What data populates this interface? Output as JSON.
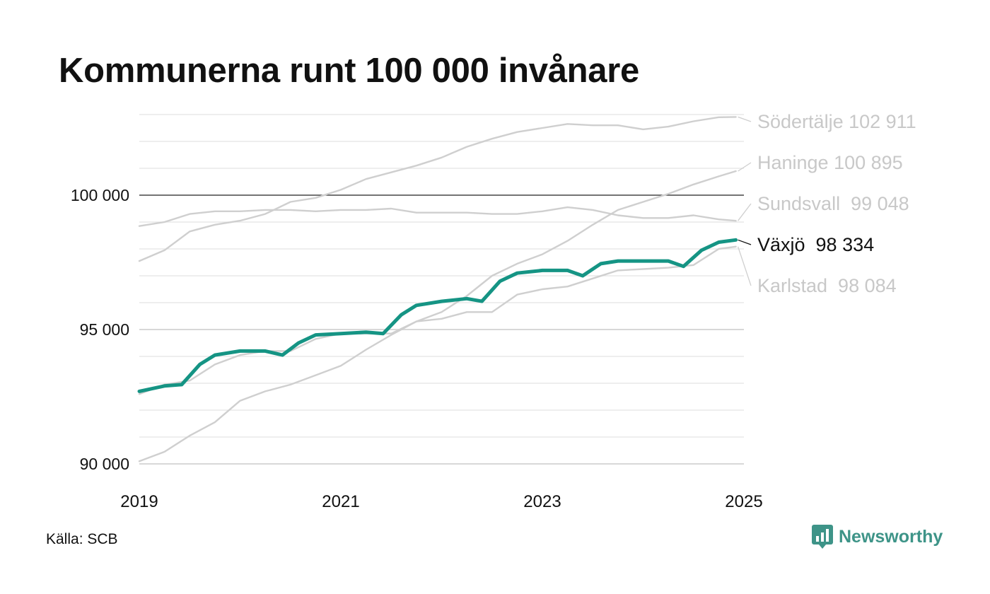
{
  "title": "Kommunerna runt 100 000 invånare",
  "source": "Källa: SCB",
  "brand": {
    "name": "Newsworthy",
    "icon": "newsworthy-logo-icon",
    "color": "#3e9488"
  },
  "colors": {
    "highlight": "#159484",
    "muted": "#cfcfcf",
    "label_muted": "#c8c8c8",
    "grid": "#e3e3e3",
    "reference": "#222222"
  },
  "chart_data": {
    "type": "line",
    "title": "Kommunerna runt 100 000 invånare",
    "x_ticks": [
      "2019",
      "2021",
      "2023",
      "2025"
    ],
    "x_tick_values": [
      2019,
      2021,
      2023,
      2025
    ],
    "y_ticks": [
      "90 000",
      "95 000",
      "100 000"
    ],
    "y_tick_values": [
      90000,
      95000,
      100000
    ],
    "ylim": [
      90000,
      103000
    ],
    "xlim": [
      2019,
      2025
    ],
    "grid": true,
    "reference_line": 100000,
    "series": [
      {
        "name": "Södertälje",
        "label": "Södertälje 102 911",
        "highlight": false,
        "points": [
          [
            2019.0,
            97550
          ],
          [
            2019.25,
            97950
          ],
          [
            2019.5,
            98650
          ],
          [
            2019.75,
            98900
          ],
          [
            2020.0,
            99050
          ],
          [
            2020.25,
            99300
          ],
          [
            2020.5,
            99750
          ],
          [
            2020.75,
            99900
          ],
          [
            2021.0,
            100200
          ],
          [
            2021.25,
            100600
          ],
          [
            2021.5,
            100850
          ],
          [
            2021.75,
            101100
          ],
          [
            2022.0,
            101400
          ],
          [
            2022.25,
            101800
          ],
          [
            2022.5,
            102100
          ],
          [
            2022.75,
            102350
          ],
          [
            2023.0,
            102500
          ],
          [
            2023.25,
            102650
          ],
          [
            2023.5,
            102600
          ],
          [
            2023.75,
            102600
          ],
          [
            2024.0,
            102450
          ],
          [
            2024.25,
            102550
          ],
          [
            2024.5,
            102750
          ],
          [
            2024.75,
            102900
          ],
          [
            2024.92,
            102911
          ]
        ]
      },
      {
        "name": "Haninge",
        "label": "Haninge 100 895",
        "highlight": false,
        "points": [
          [
            2019.0,
            90100
          ],
          [
            2019.25,
            90450
          ],
          [
            2019.5,
            91050
          ],
          [
            2019.75,
            91550
          ],
          [
            2020.0,
            92350
          ],
          [
            2020.25,
            92700
          ],
          [
            2020.5,
            92950
          ],
          [
            2020.75,
            93300
          ],
          [
            2021.0,
            93650
          ],
          [
            2021.25,
            94250
          ],
          [
            2021.5,
            94800
          ],
          [
            2021.75,
            95300
          ],
          [
            2022.0,
            95650
          ],
          [
            2022.25,
            96250
          ],
          [
            2022.5,
            97000
          ],
          [
            2022.75,
            97450
          ],
          [
            2023.0,
            97800
          ],
          [
            2023.25,
            98300
          ],
          [
            2023.5,
            98900
          ],
          [
            2023.75,
            99450
          ],
          [
            2024.0,
            99750
          ],
          [
            2024.25,
            100050
          ],
          [
            2024.5,
            100400
          ],
          [
            2024.75,
            100700
          ],
          [
            2024.92,
            100895
          ]
        ]
      },
      {
        "name": "Sundsvall",
        "label": "Sundsvall  99 048",
        "highlight": false,
        "points": [
          [
            2019.0,
            98850
          ],
          [
            2019.25,
            99000
          ],
          [
            2019.5,
            99300
          ],
          [
            2019.75,
            99400
          ],
          [
            2020.0,
            99400
          ],
          [
            2020.25,
            99450
          ],
          [
            2020.5,
            99450
          ],
          [
            2020.75,
            99400
          ],
          [
            2021.0,
            99450
          ],
          [
            2021.25,
            99450
          ],
          [
            2021.5,
            99500
          ],
          [
            2021.75,
            99350
          ],
          [
            2022.0,
            99350
          ],
          [
            2022.25,
            99350
          ],
          [
            2022.5,
            99300
          ],
          [
            2022.75,
            99300
          ],
          [
            2023.0,
            99400
          ],
          [
            2023.25,
            99550
          ],
          [
            2023.5,
            99450
          ],
          [
            2023.75,
            99250
          ],
          [
            2024.0,
            99150
          ],
          [
            2024.25,
            99150
          ],
          [
            2024.5,
            99250
          ],
          [
            2024.75,
            99100
          ],
          [
            2024.92,
            99048
          ]
        ]
      },
      {
        "name": "Karlstad",
        "label": "Karlstad  98 084",
        "highlight": false,
        "points": [
          [
            2019.0,
            92600
          ],
          [
            2019.25,
            92950
          ],
          [
            2019.5,
            93100
          ],
          [
            2019.75,
            93700
          ],
          [
            2020.0,
            94050
          ],
          [
            2020.25,
            94200
          ],
          [
            2020.5,
            94200
          ],
          [
            2020.75,
            94650
          ],
          [
            2021.0,
            94850
          ],
          [
            2021.25,
            94850
          ],
          [
            2021.5,
            94850
          ],
          [
            2021.75,
            95300
          ],
          [
            2022.0,
            95400
          ],
          [
            2022.25,
            95650
          ],
          [
            2022.5,
            95650
          ],
          [
            2022.75,
            96300
          ],
          [
            2023.0,
            96500
          ],
          [
            2023.25,
            96600
          ],
          [
            2023.5,
            96900
          ],
          [
            2023.75,
            97200
          ],
          [
            2024.0,
            97250
          ],
          [
            2024.25,
            97300
          ],
          [
            2024.5,
            97400
          ],
          [
            2024.75,
            98000
          ],
          [
            2024.92,
            98084
          ]
        ]
      },
      {
        "name": "Växjö",
        "label": "Växjö  98 334",
        "highlight": true,
        "points": [
          [
            2019.0,
            92700
          ],
          [
            2019.25,
            92900
          ],
          [
            2019.42,
            92950
          ],
          [
            2019.6,
            93700
          ],
          [
            2019.75,
            94050
          ],
          [
            2020.0,
            94200
          ],
          [
            2020.25,
            94200
          ],
          [
            2020.42,
            94050
          ],
          [
            2020.58,
            94500
          ],
          [
            2020.75,
            94800
          ],
          [
            2021.0,
            94850
          ],
          [
            2021.25,
            94900
          ],
          [
            2021.42,
            94850
          ],
          [
            2021.6,
            95550
          ],
          [
            2021.75,
            95900
          ],
          [
            2022.0,
            96050
          ],
          [
            2022.25,
            96150
          ],
          [
            2022.4,
            96050
          ],
          [
            2022.58,
            96800
          ],
          [
            2022.75,
            97100
          ],
          [
            2023.0,
            97200
          ],
          [
            2023.25,
            97200
          ],
          [
            2023.4,
            97000
          ],
          [
            2023.58,
            97450
          ],
          [
            2023.75,
            97550
          ],
          [
            2024.0,
            97550
          ],
          [
            2024.25,
            97550
          ],
          [
            2024.4,
            97350
          ],
          [
            2024.58,
            97950
          ],
          [
            2024.75,
            98250
          ],
          [
            2024.92,
            98334
          ]
        ]
      }
    ]
  }
}
